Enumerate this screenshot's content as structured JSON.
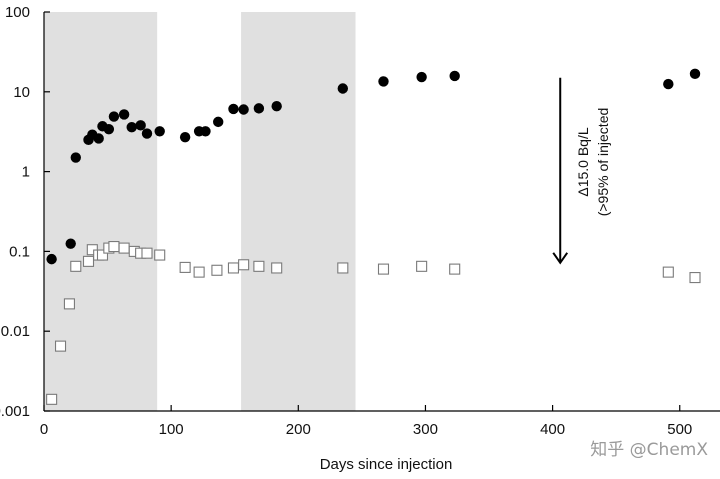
{
  "chart_data": {
    "type": "scatter",
    "xlabel": "Days since injection",
    "ylabel": "",
    "xlim": [
      0,
      530
    ],
    "ylim": [
      0.001,
      100
    ],
    "y_scale": "log",
    "x_ticks": [
      0,
      100,
      200,
      300,
      400,
      500
    ],
    "x_tick_labels": [
      "0",
      "100",
      "200",
      "300",
      "400",
      "500"
    ],
    "y_ticks": [
      0.001,
      0.01,
      0.1,
      1,
      10,
      100
    ],
    "y_tick_labels": [
      "0.001",
      "0.01",
      "0.1",
      "1",
      "10",
      "100"
    ],
    "grid": false,
    "shaded_bands": [
      {
        "x_start": 0,
        "x_end": 89,
        "color": "#e0e0e0"
      },
      {
        "x_start": 155,
        "x_end": 245,
        "color": "#e0e0e0"
      }
    ],
    "series": [
      {
        "marker": "filled-circle",
        "color": "#000000",
        "points": [
          [
            6,
            0.08
          ],
          [
            21,
            0.125
          ],
          [
            25,
            1.5
          ],
          [
            35,
            2.5
          ],
          [
            38,
            2.9
          ],
          [
            43,
            2.6
          ],
          [
            46,
            3.7
          ],
          [
            51,
            3.4
          ],
          [
            55,
            4.9
          ],
          [
            63,
            5.2
          ],
          [
            69,
            3.6
          ],
          [
            76,
            3.8
          ],
          [
            81,
            3.0
          ],
          [
            91,
            3.2
          ],
          [
            111,
            2.7
          ],
          [
            122,
            3.2
          ],
          [
            127,
            3.2
          ],
          [
            137,
            4.2
          ],
          [
            149,
            6.1
          ],
          [
            157,
            6.0
          ],
          [
            169,
            6.2
          ],
          [
            183,
            6.6
          ],
          [
            235,
            11.0
          ],
          [
            267,
            13.5
          ],
          [
            297,
            15.3
          ],
          [
            323,
            15.8
          ],
          [
            491,
            12.5
          ],
          [
            512,
            16.8
          ]
        ]
      },
      {
        "marker": "open-square",
        "color": "#7a7a7a",
        "points": [
          [
            6,
            0.0014
          ],
          [
            13,
            0.0065
          ],
          [
            20,
            0.022
          ],
          [
            25,
            0.065
          ],
          [
            35,
            0.075
          ],
          [
            38,
            0.105
          ],
          [
            43,
            0.09
          ],
          [
            46,
            0.09
          ],
          [
            51,
            0.11
          ],
          [
            55,
            0.115
          ],
          [
            63,
            0.11
          ],
          [
            71,
            0.1
          ],
          [
            76,
            0.095
          ],
          [
            81,
            0.095
          ],
          [
            91,
            0.09
          ],
          [
            111,
            0.063
          ],
          [
            122,
            0.055
          ],
          [
            136,
            0.058
          ],
          [
            149,
            0.062
          ],
          [
            157,
            0.068
          ],
          [
            169,
            0.065
          ],
          [
            183,
            0.062
          ],
          [
            235,
            0.062
          ],
          [
            267,
            0.06
          ],
          [
            297,
            0.065
          ],
          [
            323,
            0.06
          ],
          [
            491,
            0.055
          ],
          [
            512,
            0.047
          ]
        ]
      }
    ],
    "annotations": [
      {
        "type": "arrow",
        "x": 406,
        "y_from": 10,
        "y_to": 0.07,
        "direction": "down"
      },
      {
        "type": "text",
        "lines": [
          "Δ15.0 Bq/L",
          "(>95% of injected"
        ],
        "orientation": "vertical"
      }
    ]
  },
  "watermark": "知乎 @ChemX"
}
